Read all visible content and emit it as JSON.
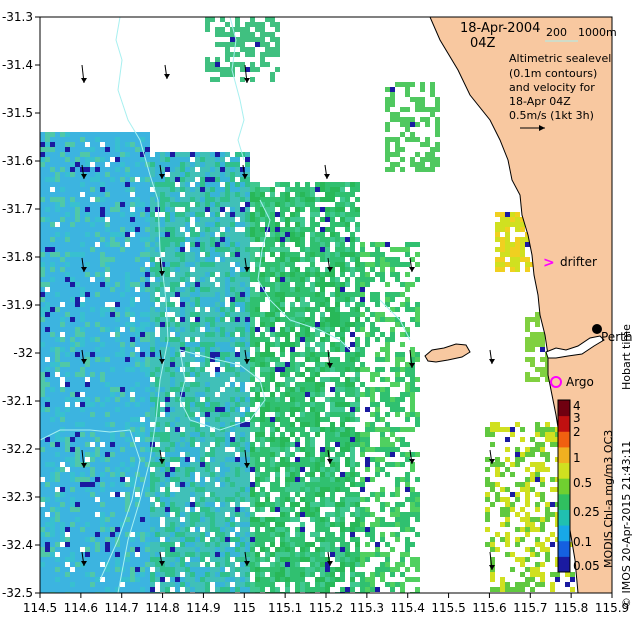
{
  "header": {
    "date": "18-Apr-2004",
    "time": "04Z",
    "scale_left": "200",
    "scale_right": "1000m"
  },
  "legend_text": {
    "line1": "Altimetric sealevel",
    "line2": "(0.1m contours)",
    "line3": "and velocity for",
    "line4": "18-Apr 04Z",
    "line5": "0.5m/s (1kt 3h)"
  },
  "labels": {
    "drifter": "drifter",
    "argo": "Argo",
    "perth": "Perth",
    "hobart_time": "Hobart time",
    "colorbar_caption": "MODIS Chl-a mg/m3 OC3",
    "credit": "© IMOS 20-Apr-2015 21:43:11"
  },
  "colorbar": {
    "ticks": [
      "0.05",
      "0.1",
      "0.25",
      "0.5",
      "1",
      "2",
      "3",
      "4"
    ],
    "colors": [
      "#1a1aa0",
      "#1560e0",
      "#18a8e8",
      "#20c0b0",
      "#30c060",
      "#70d030",
      "#d0e020",
      "#f0b020",
      "#f06010",
      "#c01010",
      "#700010"
    ]
  },
  "axes": {
    "x_ticks": [
      "114.5",
      "114.6",
      "114.7",
      "114.8",
      "114.9",
      "115",
      "115.1",
      "115.2",
      "115.3",
      "115.4",
      "115.5",
      "115.6",
      "115.7",
      "115.8",
      "115.9"
    ],
    "y_ticks": [
      "-31.3",
      "-31.4",
      "-31.5",
      "-31.6",
      "-31.7",
      "-31.8",
      "-31.9",
      "-32",
      "-32.1",
      "-32.2",
      "-32.3",
      "-32.4",
      "-32.5"
    ],
    "x_range": [
      114.5,
      115.9
    ],
    "y_range": [
      -32.5,
      -31.3
    ]
  },
  "colors": {
    "land": "#f8c8a0",
    "contour": "#a8f0f0",
    "drifter_marker": "#ff00ff",
    "argo_marker": "#ff00ff"
  }
}
